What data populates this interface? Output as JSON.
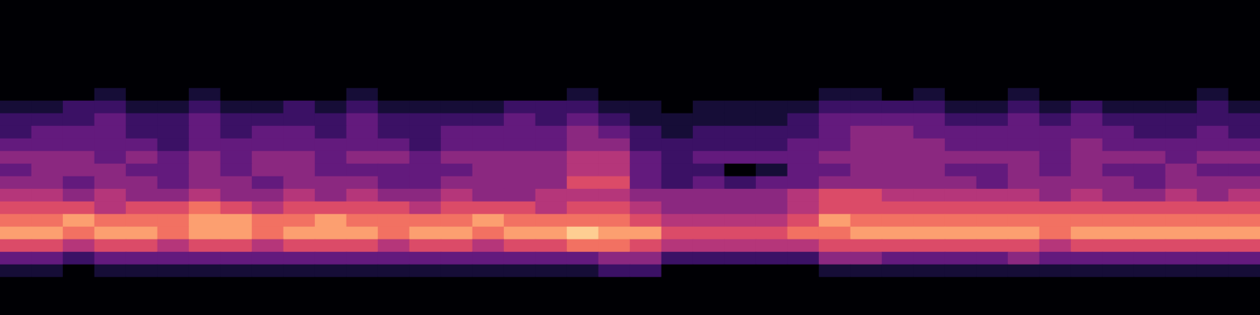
{
  "chart_data": {
    "type": "heatmap",
    "tick_labels": false,
    "zlim": [
      0,
      10
    ],
    "cells": [
      [
        0,
        0,
        0,
        0,
        0,
        0,
        0,
        0,
        0,
        0,
        0,
        0,
        0,
        0,
        0,
        0,
        0,
        0,
        0,
        0,
        0,
        0,
        0,
        0,
        0,
        0,
        0,
        0,
        0,
        0,
        0,
        0,
        0,
        0,
        0,
        0,
        0,
        0,
        0,
        0
      ],
      [
        0,
        0,
        0,
        0,
        0,
        0,
        0,
        0,
        0,
        0,
        0,
        0,
        0,
        0,
        0,
        0,
        0,
        0,
        0,
        0,
        0,
        0,
        0,
        0,
        0,
        0,
        0,
        0,
        0,
        0,
        0,
        0,
        0,
        0,
        0,
        0,
        0,
        0,
        0,
        0
      ],
      [
        0,
        0,
        0,
        0,
        0,
        0,
        0,
        0,
        0,
        0,
        0,
        0,
        0,
        0,
        0,
        0,
        0,
        0,
        0,
        0,
        0,
        0,
        0,
        0,
        0,
        0,
        0,
        0,
        0,
        0,
        0,
        0,
        0,
        0,
        0,
        0,
        0,
        0,
        0,
        0
      ],
      [
        0,
        0,
        0,
        0,
        0,
        0,
        0,
        0,
        0,
        0,
        0,
        0,
        0,
        0,
        0,
        0,
        0,
        0,
        0,
        0,
        0,
        0,
        0,
        0,
        0,
        0,
        0,
        0,
        0,
        0,
        0,
        0,
        0,
        0,
        0,
        0,
        0,
        0,
        0,
        0
      ],
      [
        0,
        0,
        0,
        0,
        0,
        0,
        0,
        0,
        0,
        0,
        0,
        0,
        0,
        0,
        0,
        0,
        0,
        0,
        0,
        0,
        0,
        0,
        0,
        0,
        0,
        0,
        0,
        0,
        0,
        0,
        0,
        0,
        0,
        0,
        0,
        0,
        0,
        0,
        0,
        0
      ],
      [
        0,
        0,
        0,
        0,
        0,
        0,
        0,
        0,
        0,
        0,
        0,
        0,
        0,
        0,
        0,
        0,
        0,
        0,
        0,
        0,
        0,
        0,
        0,
        0,
        0,
        0,
        0,
        0,
        0,
        0,
        0,
        0,
        0,
        0,
        0,
        0,
        0,
        0,
        0,
        0
      ],
      [
        0,
        0,
        0,
        0,
        0,
        0,
        0,
        0,
        0,
        0,
        0,
        0,
        0,
        0,
        0,
        0,
        0,
        0,
        0,
        0,
        0,
        0,
        0,
        0,
        0,
        0,
        0,
        0,
        0,
        0,
        0,
        0,
        0,
        0,
        0,
        0,
        0,
        0,
        0,
        0
      ],
      [
        0,
        0,
        0,
        1,
        0,
        0,
        1,
        0,
        0,
        0,
        0,
        1,
        0,
        0,
        0,
        0,
        0,
        0,
        1,
        0,
        0,
        0,
        0,
        0,
        0,
        0,
        1,
        1,
        0,
        1,
        0,
        0,
        1,
        0,
        0,
        0,
        0,
        0,
        1,
        0
      ],
      [
        1,
        1,
        2,
        2,
        1,
        1,
        2,
        1,
        1,
        2,
        1,
        2,
        1,
        1,
        1,
        1,
        2,
        2,
        2,
        1,
        1,
        0,
        1,
        1,
        1,
        1,
        2,
        2,
        2,
        2,
        1,
        1,
        2,
        1,
        2,
        1,
        1,
        1,
        2,
        1
      ],
      [
        2,
        2,
        2,
        3,
        2,
        2,
        3,
        2,
        2,
        2,
        2,
        3,
        2,
        2,
        2,
        2,
        3,
        2,
        3,
        2,
        1,
        1,
        1,
        1,
        1,
        2,
        3,
        3,
        3,
        3,
        2,
        2,
        3,
        2,
        3,
        2,
        2,
        2,
        2,
        2
      ],
      [
        2,
        3,
        3,
        3,
        2,
        2,
        3,
        2,
        3,
        3,
        2,
        3,
        2,
        2,
        3,
        3,
        3,
        3,
        4,
        3,
        2,
        1,
        2,
        2,
        2,
        2,
        3,
        4,
        4,
        3,
        3,
        3,
        3,
        3,
        3,
        3,
        2,
        2,
        3,
        2
      ],
      [
        3,
        3,
        3,
        3,
        3,
        2,
        3,
        3,
        3,
        3,
        3,
        3,
        3,
        2,
        3,
        3,
        3,
        3,
        4,
        4,
        2,
        2,
        2,
        2,
        2,
        3,
        3,
        4,
        4,
        4,
        3,
        3,
        3,
        3,
        4,
        3,
        3,
        3,
        3,
        3
      ],
      [
        4,
        4,
        4,
        3,
        4,
        3,
        4,
        3,
        4,
        4,
        3,
        4,
        4,
        3,
        4,
        4,
        4,
        4,
        5,
        5,
        3,
        2,
        3,
        3,
        3,
        3,
        4,
        4,
        4,
        4,
        4,
        4,
        4,
        3,
        4,
        4,
        4,
        3,
        4,
        4
      ],
      [
        3,
        4,
        4,
        4,
        3,
        3,
        4,
        3,
        4,
        4,
        3,
        3,
        3,
        3,
        3,
        4,
        4,
        4,
        5,
        5,
        3,
        2,
        2,
        0,
        1,
        3,
        3,
        4,
        4,
        4,
        3,
        3,
        4,
        3,
        4,
        3,
        3,
        4,
        3,
        3
      ],
      [
        4,
        4,
        3,
        4,
        4,
        3,
        4,
        4,
        3,
        4,
        4,
        4,
        3,
        3,
        4,
        4,
        4,
        4,
        6,
        6,
        3,
        2,
        3,
        2,
        3,
        3,
        4,
        4,
        4,
        4,
        4,
        3,
        4,
        4,
        4,
        4,
        3,
        4,
        4,
        4
      ],
      [
        5,
        5,
        4,
        5,
        4,
        4,
        5,
        4,
        4,
        5,
        4,
        5,
        4,
        4,
        5,
        4,
        4,
        5,
        5,
        5,
        4,
        4,
        4,
        4,
        4,
        5,
        6,
        6,
        5,
        5,
        5,
        5,
        5,
        4,
        5,
        4,
        4,
        5,
        4,
        5
      ],
      [
        6,
        6,
        6,
        5,
        6,
        6,
        7,
        6,
        5,
        6,
        6,
        6,
        6,
        5,
        6,
        6,
        6,
        5,
        6,
        6,
        5,
        4,
        4,
        4,
        4,
        5,
        6,
        6,
        6,
        6,
        6,
        6,
        6,
        6,
        6,
        6,
        6,
        6,
        6,
        6
      ],
      [
        7,
        7,
        8,
        7,
        7,
        7,
        8,
        8,
        7,
        7,
        8,
        7,
        7,
        7,
        7,
        8,
        7,
        7,
        7,
        7,
        6,
        5,
        5,
        5,
        5,
        6,
        8,
        7,
        7,
        7,
        7,
        7,
        7,
        7,
        7,
        7,
        7,
        7,
        7,
        7
      ],
      [
        8,
        8,
        7,
        8,
        8,
        7,
        8,
        8,
        7,
        8,
        8,
        8,
        7,
        8,
        8,
        7,
        8,
        8,
        9,
        8,
        8,
        6,
        6,
        6,
        6,
        7,
        7,
        8,
        8,
        8,
        8,
        8,
        8,
        7,
        8,
        8,
        8,
        8,
        8,
        8
      ],
      [
        6,
        6,
        5,
        6,
        6,
        5,
        6,
        6,
        5,
        6,
        6,
        6,
        5,
        6,
        6,
        5,
        6,
        6,
        7,
        7,
        6,
        5,
        5,
        5,
        5,
        5,
        6,
        6,
        6,
        6,
        6,
        6,
        6,
        5,
        6,
        6,
        6,
        6,
        6,
        6
      ],
      [
        3,
        3,
        2,
        3,
        3,
        3,
        3,
        3,
        3,
        3,
        3,
        3,
        3,
        3,
        3,
        3,
        3,
        3,
        3,
        4,
        4,
        2,
        2,
        2,
        2,
        2,
        4,
        4,
        3,
        3,
        3,
        3,
        4,
        3,
        3,
        3,
        3,
        3,
        3,
        3
      ],
      [
        1,
        1,
        0,
        1,
        1,
        1,
        1,
        1,
        1,
        1,
        1,
        1,
        1,
        1,
        1,
        1,
        1,
        1,
        1,
        2,
        2,
        0,
        0,
        0,
        0,
        0,
        1,
        1,
        1,
        1,
        1,
        1,
        1,
        1,
        1,
        1,
        1,
        1,
        1,
        1
      ],
      [
        0,
        0,
        0,
        0,
        0,
        0,
        0,
        0,
        0,
        0,
        0,
        0,
        0,
        0,
        0,
        0,
        0,
        0,
        0,
        0,
        0,
        0,
        0,
        0,
        0,
        0,
        0,
        0,
        0,
        0,
        0,
        0,
        0,
        0,
        0,
        0,
        0,
        0,
        0,
        0
      ],
      [
        0,
        0,
        0,
        0,
        0,
        0,
        0,
        0,
        0,
        0,
        0,
        0,
        0,
        0,
        0,
        0,
        0,
        0,
        0,
        0,
        0,
        0,
        0,
        0,
        0,
        0,
        0,
        0,
        0,
        0,
        0,
        0,
        0,
        0,
        0,
        0,
        0,
        0,
        0,
        0
      ],
      [
        0,
        0,
        0,
        0,
        0,
        0,
        0,
        0,
        0,
        0,
        0,
        0,
        0,
        0,
        0,
        0,
        0,
        0,
        0,
        0,
        0,
        0,
        0,
        0,
        0,
        0,
        0,
        0,
        0,
        0,
        0,
        0,
        0,
        0,
        0,
        0,
        0,
        0,
        0,
        0
      ]
    ]
  }
}
